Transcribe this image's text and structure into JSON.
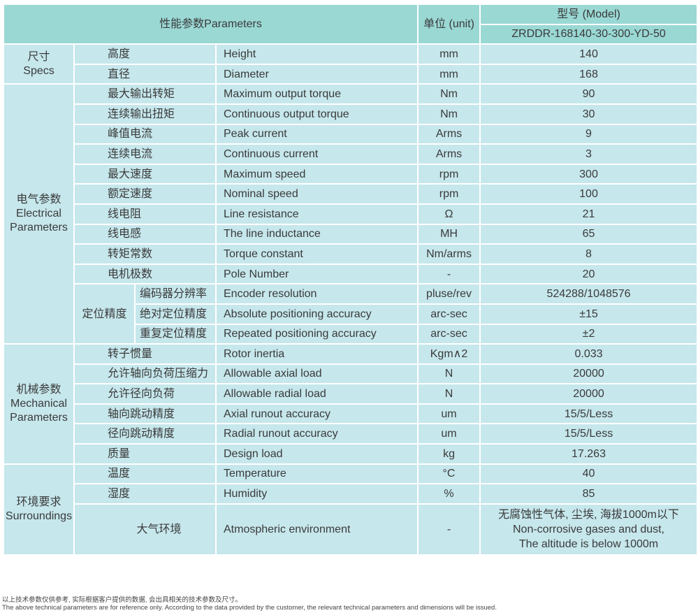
{
  "header": {
    "parameters": "性能参数Parameters",
    "unit": "单位 (unit)",
    "model_label": "型号 (Model)",
    "model": "ZRDDR-168140-30-300-YD-50"
  },
  "groups": [
    {
      "cn": "尺寸",
      "en": "Specs",
      "rows": [
        {
          "cn": "高度",
          "en": "Height",
          "unit": "mm",
          "value": "140"
        },
        {
          "cn": "直径",
          "en": "Diameter",
          "unit": "mm",
          "value": "168"
        }
      ]
    },
    {
      "cn": "电气参数",
      "en": "Electrical Parameters",
      "rows": [
        {
          "cn": "最大输出转矩",
          "en": "Maximum output torque",
          "unit": "Nm",
          "value": "90"
        },
        {
          "cn": "连续输出扭矩",
          "en": "Continuous output torque",
          "unit": "Nm",
          "value": "30"
        },
        {
          "cn": "峰值电流",
          "en": "Peak current",
          "unit": "Arms",
          "value": "9"
        },
        {
          "cn": "连续电流",
          "en": "Continuous current",
          "unit": "Arms",
          "value": "3"
        },
        {
          "cn": "最大速度",
          "en": "Maximum speed",
          "unit": "rpm",
          "value": "300"
        },
        {
          "cn": "额定速度",
          "en": "Nominal speed",
          "unit": "rpm",
          "value": "100"
        },
        {
          "cn": "线电阻",
          "en": "Line resistance",
          "unit": "Ω",
          "value": "21"
        },
        {
          "cn": "线电感",
          "en": "The line inductance",
          "unit": "MH",
          "value": "65"
        },
        {
          "cn": "转矩常数",
          "en": "Torque constant",
          "unit": "Nm/arms",
          "value": "8"
        },
        {
          "cn": "电机极数",
          "en": "Pole Number",
          "unit": "-",
          "value": "20"
        },
        {
          "sub_group": "定位精度",
          "cn": "编码器分辨率",
          "en": "Encoder resolution",
          "unit": "pluse/rev",
          "value": "524288/1048576"
        },
        {
          "sub_group": "定位精度",
          "cn": "绝对定位精度",
          "en": "Absolute positioning accuracy",
          "unit": "arc-sec",
          "value": "±15"
        },
        {
          "sub_group": "定位精度",
          "cn": "重复定位精度",
          "en": "Repeated positioning accuracy",
          "unit": "arc-sec",
          "value": "±2"
        }
      ]
    },
    {
      "cn": "机械参数",
      "en": "Mechanical Parameters",
      "rows": [
        {
          "cn": "转子惯量",
          "en": "Rotor inertia",
          "unit": "Kgm∧2",
          "value": "0.033"
        },
        {
          "cn": "允许轴向负荷压缩力",
          "en": "Allowable axial load",
          "unit": "N",
          "value": "20000"
        },
        {
          "cn": "允许径向负荷",
          "en": "Allowable radial load",
          "unit": "N",
          "value": "20000"
        },
        {
          "cn": "轴向跳动精度",
          "en": "Axial runout accuracy",
          "unit": "um",
          "value": "15/5/Less"
        },
        {
          "cn": "径向跳动精度",
          "en": "Radial runout accuracy",
          "unit": "um",
          "value": "15/5/Less"
        },
        {
          "cn": "质量",
          "en": "Design load",
          "unit": "kg",
          "value": "17.263"
        }
      ]
    },
    {
      "cn": "环境要求",
      "en": "Surroundings",
      "rows": [
        {
          "cn": "温度",
          "en": "Temperature",
          "unit": "°C",
          "value": "40"
        },
        {
          "cn": "湿度",
          "en": "Humidity",
          "unit": "%",
          "value": "85"
        },
        {
          "cn": "大气环境",
          "en": "Atmospheric environment",
          "unit": "-",
          "value": "无腐蚀性气体, 尘埃, 海拔1000m以下",
          "value2": "Non-corrosive gases and dust,",
          "value3": "The altitude is below 1000m",
          "centered": true
        }
      ]
    }
  ],
  "footnote": {
    "cn": "以上技术参数仅供参考, 实际根据客户提供的数据, 会出具相关的技术参数及尺寸。",
    "en": "The above technical parameters are for reference only. According to the data provided by the customer, the relevant technical parameters and dimensions will be issued."
  }
}
